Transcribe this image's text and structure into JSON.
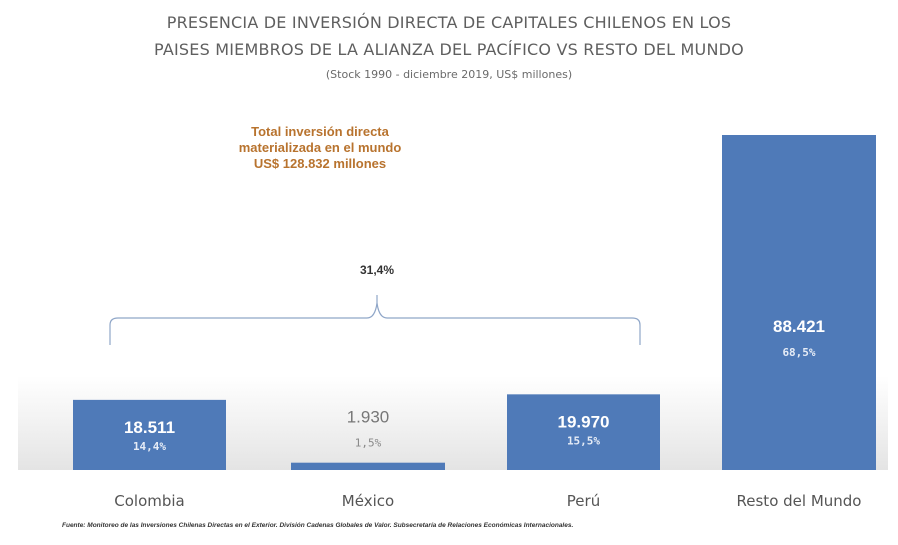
{
  "chart_data": {
    "type": "bar",
    "title_line1": "PRESENCIA DE INVERSIÓN DIRECTA DE CAPITALES CHILENOS EN LOS",
    "title_line2": "PAISES MIEMBROS DE LA ALIANZA DEL PACÍFICO VS RESTO DEL MUNDO",
    "subtitle": "(Stock 1990 - diciembre 2019, US$ millones)",
    "categories": [
      "Colombia",
      "México",
      "Perú",
      "Resto del Mundo"
    ],
    "values": [
      18511,
      1930,
      19970,
      88421
    ],
    "value_labels": [
      "18.511",
      "1.930",
      "19.970",
      "88.421"
    ],
    "percent_labels": [
      "14,4%",
      "1,5%",
      "15,5%",
      "68,5%"
    ],
    "bracket_label": "31,4%",
    "annotation_lines": [
      "Total inversión directa",
      "materializada en el mundo",
      "US$ 128.832 millones"
    ],
    "bar_color": "#4f7ab8",
    "annotation_color": "#b8732e",
    "grid": false,
    "legend": "none"
  },
  "source_text": "Fuente: Monitoreo de las Inversiones Chilenas Directas en el Exterior. División Cadenas Globales de Valor. Subsecretaría de Relaciones Económicas Internacionales."
}
